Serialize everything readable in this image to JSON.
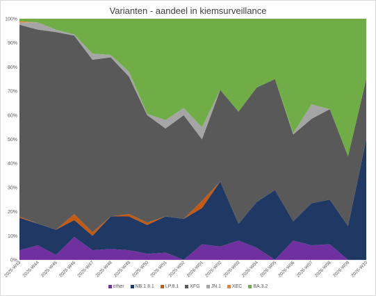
{
  "chart_data": {
    "type": "area",
    "stacked": true,
    "percent": true,
    "title": "Varianten - aandeel in kiemsurveillance",
    "xlabel": "",
    "ylabel": "",
    "ylim": [
      0,
      100
    ],
    "yticks": [
      "0%",
      "10%",
      "20%",
      "30%",
      "40%",
      "50%",
      "60%",
      "70%",
      "80%",
      "90%",
      "100%"
    ],
    "grid": true,
    "legend_position": "bottom",
    "categories": [
      "2025-W43",
      "2025-W44",
      "2025-W45",
      "2025-W46",
      "2025-W47",
      "2025-W48",
      "2025-W49",
      "2025-W50",
      "2025-W51",
      "2025-W52",
      "2026-W01",
      "2026-W02",
      "2026-W03",
      "2026-W04",
      "2026-W05",
      "2026-W06",
      "2026-W07",
      "2026-W08",
      "2026-W09",
      "2026-W10"
    ],
    "series": [
      {
        "name": "other",
        "color": "#7030a0",
        "values": [
          4,
          6,
          2,
          9.5,
          4,
          4.5,
          4,
          2.5,
          3,
          0,
          6.5,
          5.5,
          8,
          5,
          0,
          8,
          6,
          6.5,
          0,
          0
        ]
      },
      {
        "name": "NB.1.8.1",
        "color": "#203864",
        "values": [
          13.5,
          9,
          10.5,
          7,
          6,
          13.5,
          14,
          12,
          15,
          17,
          15,
          27,
          7,
          19,
          29,
          8,
          17.5,
          18.5,
          14,
          50
        ]
      },
      {
        "name": "LP.8.1",
        "color": "#c55a11",
        "values": [
          0.5,
          0,
          0,
          2.5,
          1.5,
          0,
          1,
          1,
          0,
          0,
          3,
          0,
          0,
          0,
          0,
          0,
          0,
          0,
          0,
          0
        ]
      },
      {
        "name": "XFG",
        "color": "#595959",
        "values": [
          79.5,
          80.5,
          82,
          74,
          71.5,
          66,
          57,
          44.5,
          36.5,
          43,
          25.5,
          38,
          46.5,
          47.5,
          46,
          36,
          35,
          37.5,
          29,
          25
        ]
      },
      {
        "name": "JN.1",
        "color": "#a5a5a5",
        "values": [
          1,
          3,
          1,
          0.5,
          2.5,
          1,
          2,
          0.5,
          3.5,
          3,
          5,
          0,
          0,
          0,
          0,
          0.5,
          6,
          0,
          0,
          0
        ]
      },
      {
        "name": "XEC",
        "color": "#ed7d31",
        "values": [
          0.5,
          0,
          0,
          0,
          0,
          0,
          0,
          0,
          0,
          0,
          0,
          0,
          0,
          0,
          0,
          0,
          0,
          0,
          0,
          0
        ]
      },
      {
        "name": "BA.3.2",
        "color": "#70ad47",
        "values": [
          1,
          1.5,
          4.5,
          6.5,
          14.5,
          15,
          22,
          39.5,
          42,
          37,
          45,
          29.5,
          38.5,
          28.5,
          25,
          47.5,
          35.5,
          37.5,
          57,
          25
        ]
      }
    ]
  }
}
